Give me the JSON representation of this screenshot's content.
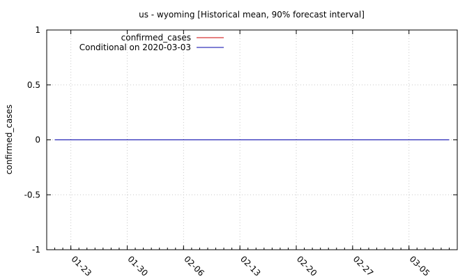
{
  "chart_data": {
    "type": "line",
    "title": "us - wyoming [Historical mean, 90% forecast interval]",
    "xlabel": "",
    "ylabel": "confirmed_cases",
    "x_type": "date",
    "ylim": [
      -1,
      1
    ],
    "y_ticks": [
      {
        "value": -1,
        "label": "-1"
      },
      {
        "value": -0.5,
        "label": "-0.5"
      },
      {
        "value": 0,
        "label": "0"
      },
      {
        "value": 0.5,
        "label": "0.5"
      },
      {
        "value": 1,
        "label": "1"
      }
    ],
    "xlim": [
      "2020-01-20",
      "2020-03-11"
    ],
    "x_ticks": [
      {
        "value": "2020-01-23",
        "label": "01-23"
      },
      {
        "value": "2020-01-30",
        "label": "01-30"
      },
      {
        "value": "2020-02-06",
        "label": "02-06"
      },
      {
        "value": "2020-02-13",
        "label": "02-13"
      },
      {
        "value": "2020-02-20",
        "label": "02-20"
      },
      {
        "value": "2020-02-27",
        "label": "02-27"
      },
      {
        "value": "2020-03-05",
        "label": "03-05"
      }
    ],
    "grid": true,
    "legend_position": "top-left",
    "series": [
      {
        "name": "confirmed_cases",
        "color": "#cc0000",
        "x": [
          "2020-01-21",
          "2020-03-03"
        ],
        "values": [
          0,
          0
        ]
      },
      {
        "name": "Conditional on 2020-03-03",
        "color": "#0000aa",
        "x": [
          "2020-01-21",
          "2020-03-10"
        ],
        "values": [
          0,
          0
        ]
      }
    ]
  }
}
